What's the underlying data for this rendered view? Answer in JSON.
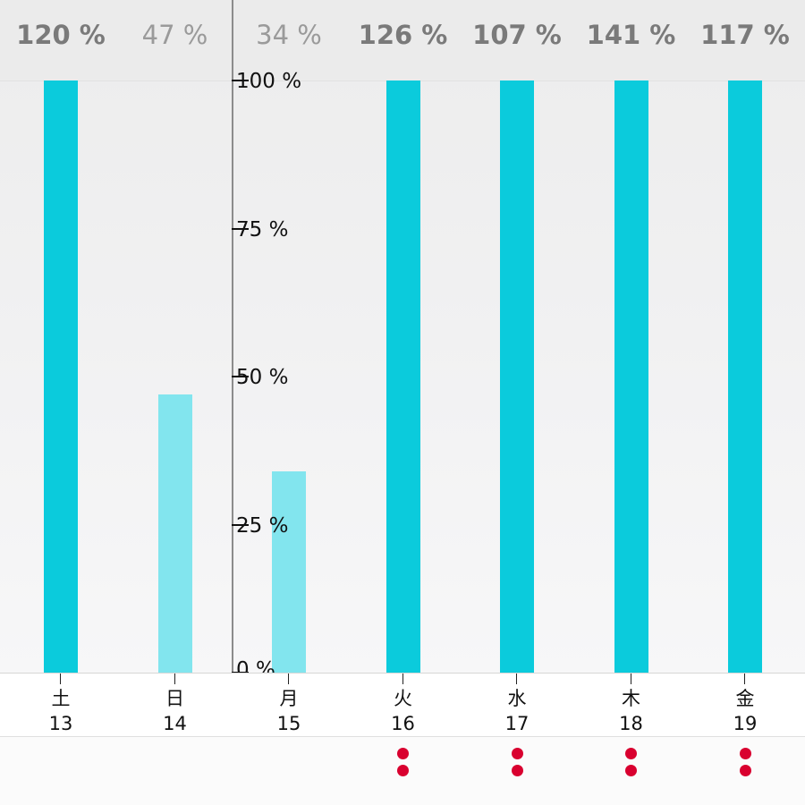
{
  "chart_data": {
    "type": "bar",
    "title": "",
    "xlabel": "",
    "ylabel": "",
    "ylim": [
      0,
      100
    ],
    "y_ticks": [
      "0 %",
      "25 %",
      "50 %",
      "75 %",
      "100 %"
    ],
    "grid": false,
    "categories": [
      {
        "weekday": "土",
        "day": "13"
      },
      {
        "weekday": "日",
        "day": "14"
      },
      {
        "weekday": "月",
        "day": "15"
      },
      {
        "weekday": "火",
        "day": "16"
      },
      {
        "weekday": "水",
        "day": "17"
      },
      {
        "weekday": "木",
        "day": "18"
      },
      {
        "weekday": "金",
        "day": "19"
      }
    ],
    "values": [
      120,
      47,
      34,
      126,
      107,
      141,
      117
    ],
    "value_labels": [
      "120 %",
      "47 %",
      "34 %",
      "126 %",
      "107 %",
      "141 %",
      "117 %"
    ],
    "bars_clipped_at": 100,
    "marker_dots_per_day": [
      0,
      0,
      0,
      2,
      2,
      2,
      2
    ],
    "colors": {
      "bar_at_or_above_target": "#0bcbdc",
      "bar_below_target": "#82e5ee",
      "marker_dot": "#d9002f",
      "axis": "#8c8c8c"
    }
  }
}
